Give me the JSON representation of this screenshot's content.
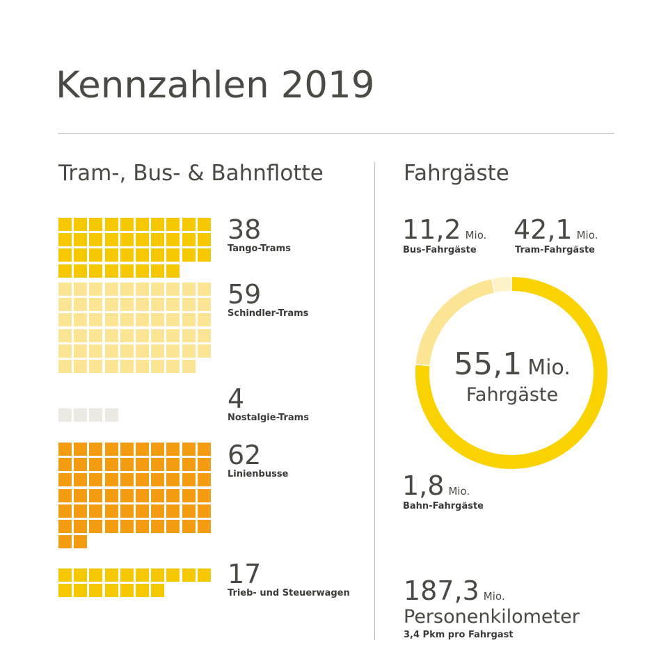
{
  "title": "Kennzahlen 2019",
  "fleet": {
    "heading": "Tram-, Bus- & Bahnflotte",
    "items": [
      {
        "value": 38,
        "label": "Tango-Trams",
        "color": "#f5c800"
      },
      {
        "value": 59,
        "label": "Schindler-Trams",
        "color": "#fbe494"
      },
      {
        "value": 4,
        "label": "Nostalgie-Trams",
        "color": "#ebe9e2"
      },
      {
        "value": 62,
        "label": "Linienbusse",
        "color": "#f39c12"
      },
      {
        "value": 17,
        "label": "Trieb- und Steuerwagen",
        "color": "#f5c800"
      }
    ]
  },
  "passengers": {
    "heading": "Fahrgäste",
    "bus": {
      "value": "11,2",
      "unit": "Mio.",
      "label": "Bus-Fahrgäste"
    },
    "tram": {
      "value": "42,1",
      "unit": "Mio.",
      "label": "Tram-Fahrgäste"
    },
    "bahn": {
      "value": "1,8",
      "unit": "Mio.",
      "label": "Bahn-Fahrgäste"
    },
    "total": {
      "value": "55,1",
      "unit": "Mio.",
      "label": "Fahrgäste"
    },
    "pkm": {
      "value": "187,3",
      "unit": "Mio.",
      "label": "Personenkilometer",
      "sub": "3,4 Pkm pro Fahrgast"
    }
  },
  "chart_data": [
    {
      "type": "waffle",
      "categories": [
        "Tango-Trams",
        "Schindler-Trams",
        "Nostalgie-Trams",
        "Linienbusse",
        "Trieb- und Steuerwagen"
      ],
      "values": [
        38,
        59,
        4,
        62,
        17
      ],
      "colors": [
        "#f5c800",
        "#fbe494",
        "#ebe9e2",
        "#f39c12",
        "#f5c800"
      ]
    },
    {
      "type": "pie",
      "categories": [
        "Tram-Fahrgäste",
        "Bus-Fahrgäste",
        "Bahn-Fahrgäste"
      ],
      "values": [
        42.1,
        11.2,
        1.8
      ],
      "colors": [
        "#f9d200",
        "#fbe494",
        "#fdf2c8"
      ],
      "unit": "Mio."
    }
  ]
}
